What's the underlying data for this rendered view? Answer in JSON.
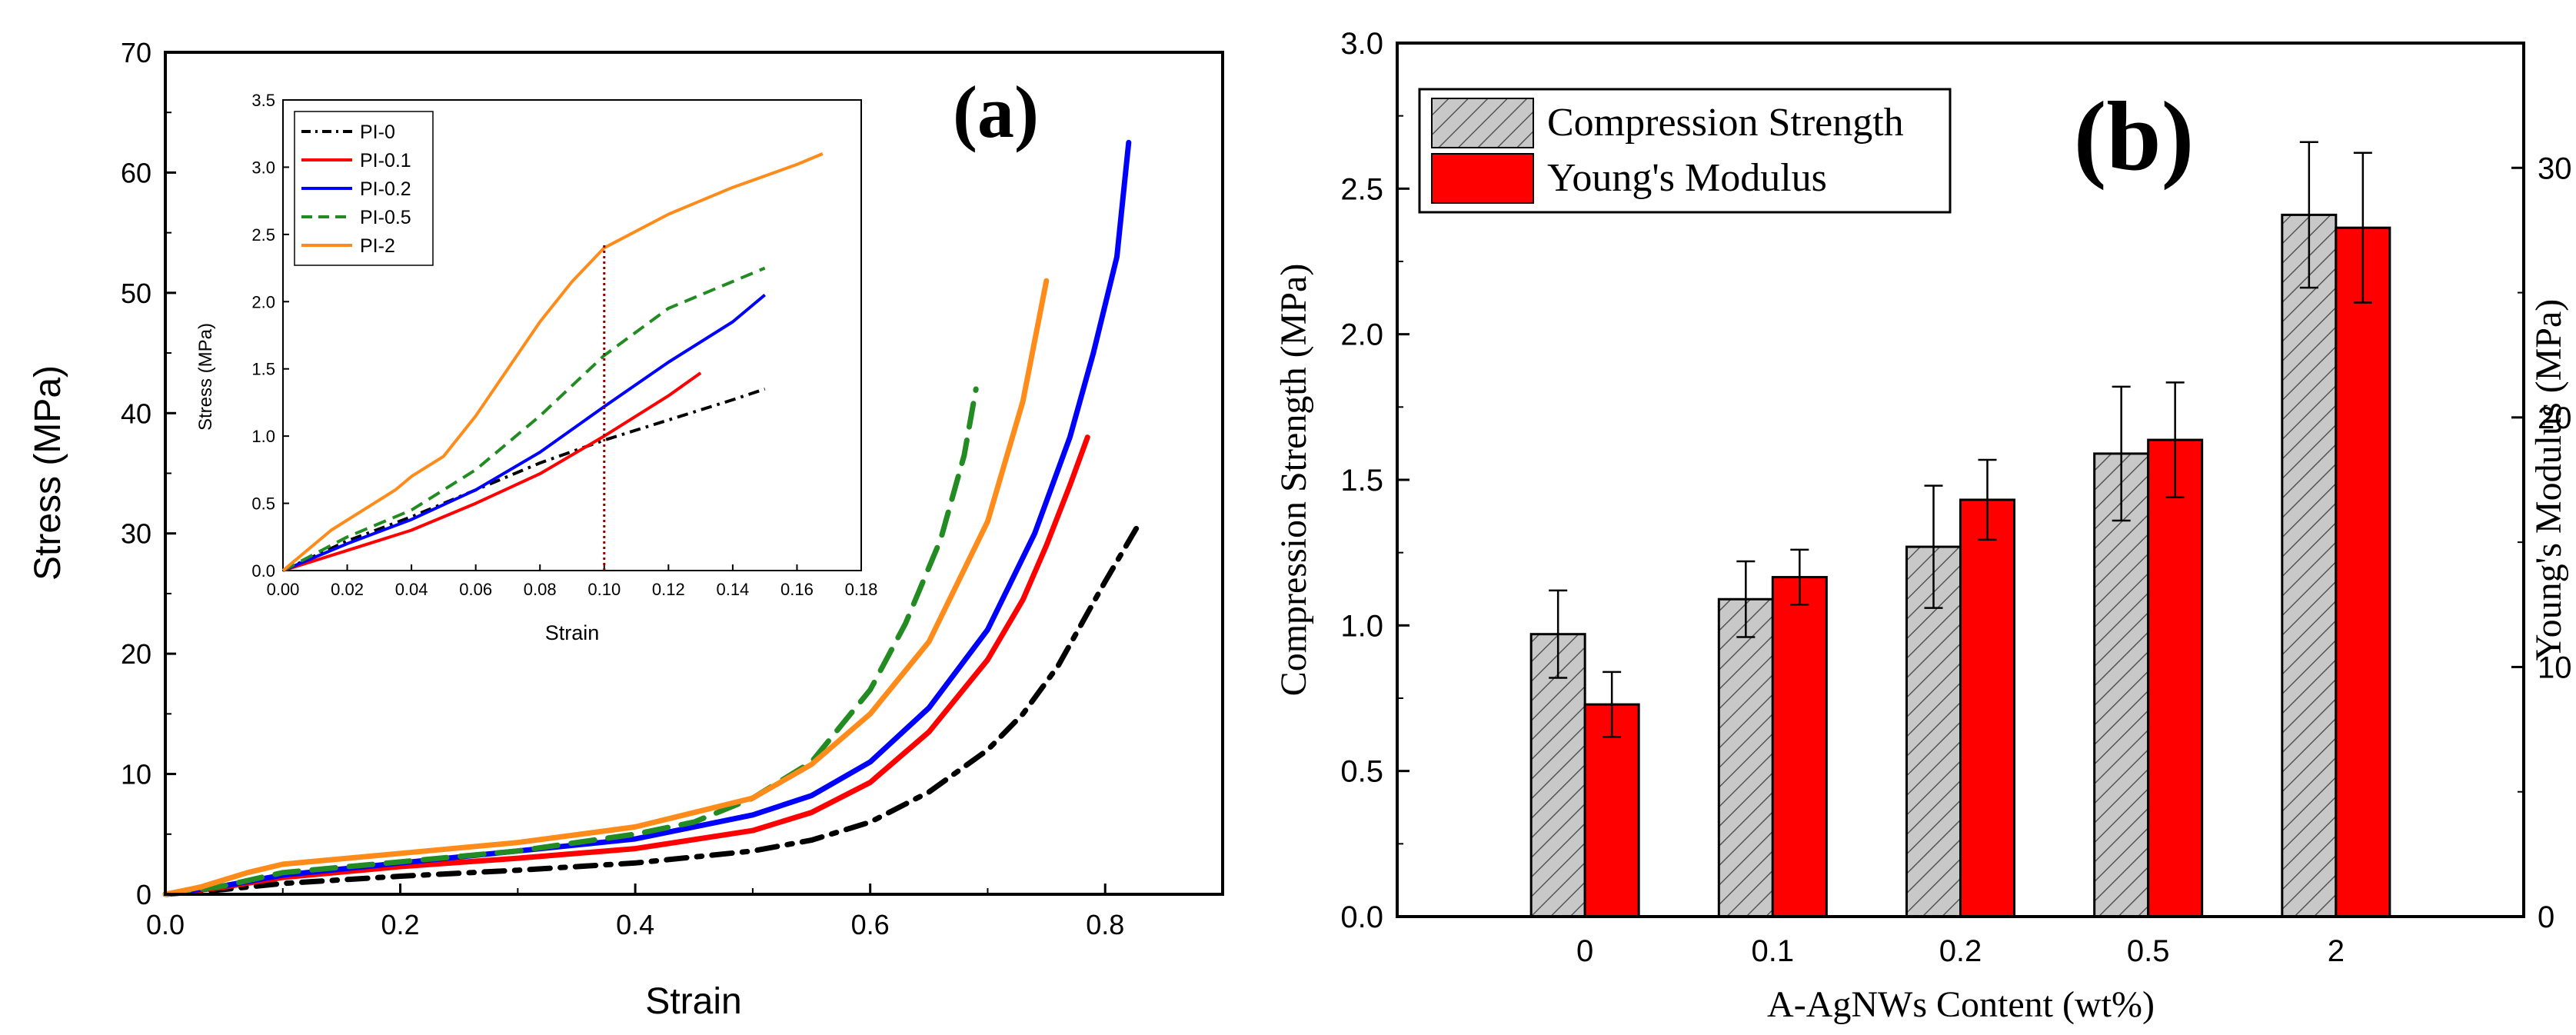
{
  "chart_data": [
    {
      "panel_label": "(a)",
      "type": "line",
      "xlabel": "Strain",
      "ylabel": "Stress (MPa)",
      "xlim": [
        0,
        0.9
      ],
      "ylim": [
        0,
        70
      ],
      "xticks": [
        "0.0",
        "0.2",
        "0.4",
        "0.6",
        "0.8"
      ],
      "yticks": [
        "0",
        "10",
        "20",
        "30",
        "40",
        "50",
        "60",
        "70"
      ],
      "series": [
        {
          "name": "PI-0",
          "color": "#000000",
          "dash": "dashdot",
          "x": [
            0,
            0.05,
            0.1,
            0.2,
            0.3,
            0.4,
            0.5,
            0.55,
            0.6,
            0.65,
            0.7,
            0.73,
            0.76,
            0.78,
            0.8,
            0.815,
            0.83
          ],
          "y": [
            0,
            0.4,
            0.9,
            1.5,
            2.0,
            2.6,
            3.6,
            4.5,
            6.0,
            8.5,
            12.0,
            15.0,
            19.0,
            22.5,
            26.0,
            28.5,
            31.0
          ]
        },
        {
          "name": "PI-0.1",
          "color": "#ff0000",
          "dash": "solid",
          "x": [
            0,
            0.05,
            0.1,
            0.2,
            0.3,
            0.4,
            0.5,
            0.55,
            0.6,
            0.65,
            0.7,
            0.73,
            0.75,
            0.77,
            0.785
          ],
          "y": [
            0,
            0.6,
            1.4,
            2.3,
            3.0,
            3.8,
            5.3,
            6.8,
            9.3,
            13.5,
            19.5,
            24.5,
            29.0,
            34.0,
            38.0
          ]
        },
        {
          "name": "PI-0.2",
          "color": "#0000ff",
          "dash": "solid",
          "x": [
            0,
            0.05,
            0.1,
            0.2,
            0.3,
            0.4,
            0.5,
            0.55,
            0.6,
            0.65,
            0.7,
            0.74,
            0.77,
            0.79,
            0.81,
            0.82
          ],
          "y": [
            0,
            0.7,
            1.6,
            2.6,
            3.6,
            4.6,
            6.6,
            8.2,
            11.0,
            15.5,
            22.0,
            30.0,
            38.0,
            45.0,
            53.0,
            62.5
          ]
        },
        {
          "name": "PI-0.5",
          "color": "#228b22",
          "dash": "dashed",
          "x": [
            0,
            0.05,
            0.1,
            0.2,
            0.3,
            0.4,
            0.45,
            0.5,
            0.55,
            0.6,
            0.63,
            0.66,
            0.68,
            0.69
          ],
          "y": [
            0,
            0.7,
            1.8,
            2.7,
            3.6,
            5.0,
            6.0,
            8.0,
            11.0,
            17.0,
            22.5,
            29.5,
            36.5,
            42.0
          ]
        },
        {
          "name": "PI-2",
          "color": "#ff8c1a",
          "dash": "solid",
          "x": [
            0,
            0.03,
            0.07,
            0.1,
            0.2,
            0.3,
            0.4,
            0.5,
            0.55,
            0.6,
            0.65,
            0.7,
            0.73,
            0.75
          ],
          "y": [
            0,
            0.6,
            1.8,
            2.5,
            3.4,
            4.3,
            5.6,
            8.0,
            10.8,
            15.0,
            21.0,
            31.0,
            41.0,
            51.0
          ]
        }
      ],
      "inset": {
        "xlabel": "Strain",
        "ylabel": "Stress (MPa)",
        "xlim": [
          0,
          0.18
        ],
        "ylim": [
          0,
          3.5
        ],
        "xticks": [
          "0.00",
          "0.02",
          "0.04",
          "0.06",
          "0.08",
          "0.10",
          "0.12",
          "0.14",
          "0.16",
          "0.18"
        ],
        "yticks": [
          "0.0",
          "0.5",
          "1.0",
          "1.5",
          "2.0",
          "2.5",
          "3.0",
          "3.5"
        ],
        "legend_position": "top-left",
        "vline_x": 0.1,
        "series": [
          {
            "name": "PI-0",
            "color": "#000000",
            "dash": "dashdot",
            "x": [
              0,
              0.02,
              0.04,
              0.06,
              0.08,
              0.1,
              0.12,
              0.14,
              0.15
            ],
            "y": [
              0,
              0.22,
              0.4,
              0.6,
              0.8,
              0.97,
              1.12,
              1.27,
              1.35
            ]
          },
          {
            "name": "PI-0.1",
            "color": "#ff0000",
            "dash": "solid",
            "x": [
              0,
              0.02,
              0.04,
              0.06,
              0.08,
              0.1,
              0.12,
              0.13
            ],
            "y": [
              0,
              0.15,
              0.3,
              0.5,
              0.72,
              1.0,
              1.3,
              1.47
            ]
          },
          {
            "name": "PI-0.2",
            "color": "#0000ff",
            "dash": "solid",
            "x": [
              0,
              0.02,
              0.04,
              0.06,
              0.08,
              0.1,
              0.12,
              0.14,
              0.15
            ],
            "y": [
              0,
              0.2,
              0.38,
              0.6,
              0.88,
              1.22,
              1.55,
              1.85,
              2.05
            ]
          },
          {
            "name": "PI-0.5",
            "color": "#228b22",
            "dash": "dashed",
            "x": [
              0,
              0.02,
              0.04,
              0.06,
              0.08,
              0.1,
              0.12,
              0.14,
              0.15
            ],
            "y": [
              0,
              0.25,
              0.45,
              0.75,
              1.15,
              1.6,
              1.95,
              2.15,
              2.25
            ]
          },
          {
            "name": "PI-2",
            "color": "#ff8c1a",
            "dash": "solid",
            "x": [
              0,
              0.015,
              0.025,
              0.035,
              0.04,
              0.05,
              0.06,
              0.07,
              0.08,
              0.09,
              0.1,
              0.12,
              0.14,
              0.16,
              0.168
            ],
            "y": [
              0,
              0.3,
              0.45,
              0.6,
              0.7,
              0.85,
              1.15,
              1.5,
              1.85,
              2.15,
              2.4,
              2.65,
              2.85,
              3.02,
              3.1
            ]
          }
        ]
      }
    },
    {
      "panel_label": "(b)",
      "type": "bar",
      "xlabel": "A-AgNWs Content (wt%)",
      "ylabel": "Compression Strength (MPa)",
      "y2label": "Young's Modulus (MPa)",
      "categories": [
        "0",
        "0.1",
        "0.2",
        "0.5",
        "2"
      ],
      "ylim": [
        0,
        3.0
      ],
      "y2lim": [
        0,
        35
      ],
      "yticks": [
        "0.0",
        "0.5",
        "1.0",
        "1.5",
        "2.0",
        "2.5",
        "3.0"
      ],
      "y2ticks": [
        "0",
        "10",
        "20",
        "30"
      ],
      "legend_position": "top-left",
      "series": [
        {
          "name": "Compression Strength",
          "axis": "left",
          "fill": "#c8c8c8",
          "pattern": "hatched",
          "values": [
            0.97,
            1.09,
            1.27,
            1.59,
            2.41
          ],
          "errors": [
            0.15,
            0.13,
            0.21,
            0.23,
            0.25
          ]
        },
        {
          "name": "Young's Modulus",
          "axis": "right",
          "fill": "#ff0000",
          "pattern": "solid",
          "values": [
            8.5,
            13.6,
            16.7,
            19.1,
            27.6
          ],
          "errors": [
            1.3,
            1.1,
            1.6,
            2.3,
            3.0
          ]
        }
      ]
    }
  ]
}
